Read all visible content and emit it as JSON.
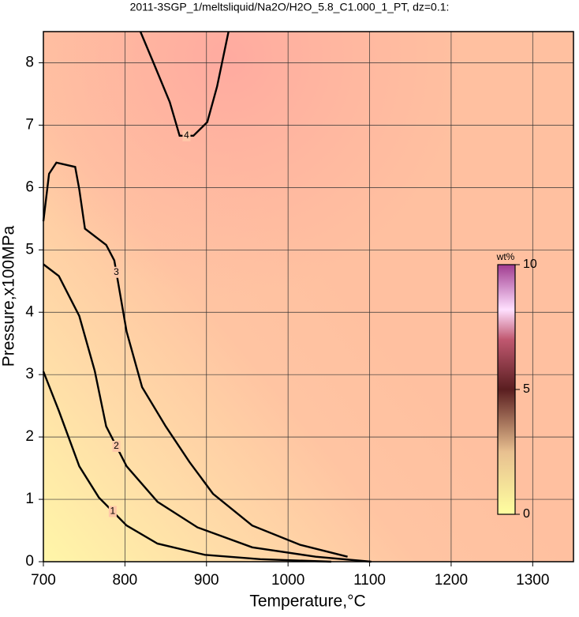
{
  "chart_data": {
    "type": "contour",
    "title": "2011-3SGP_1/meltsliquid/Na2O/H2O_5.8_C1.000_1_PT, dz=0.1:",
    "x_label": "Temperature,°C",
    "y_label": "Pressure,x100MPa",
    "xlim": [
      700,
      1350
    ],
    "ylim": [
      0,
      8.5
    ],
    "xticks": [
      700,
      800,
      900,
      1000,
      1100,
      1200,
      1300
    ],
    "yticks": [
      0,
      1,
      2,
      3,
      4,
      5,
      6,
      7,
      8
    ],
    "grid": true,
    "contours": [
      {
        "level": 1,
        "x": [
          700,
          719,
          744,
          768,
          802,
          840,
          898,
          966,
          1053
        ],
        "y": [
          3.05,
          2.42,
          1.53,
          1.03,
          0.58,
          0.29,
          0.11,
          0.04,
          0
        ]
      },
      {
        "level": 2,
        "x": [
          700,
          719,
          744,
          763,
          777,
          802,
          840,
          889,
          956,
          1034,
          1102
        ],
        "y": [
          4.77,
          4.58,
          3.94,
          3.06,
          2.17,
          1.53,
          0.96,
          0.55,
          0.23,
          0.08,
          0
        ]
      },
      {
        "level": 3,
        "x": [
          700,
          707,
          716,
          739,
          744,
          751,
          777,
          787,
          792,
          802,
          821,
          850,
          879,
          908,
          956,
          1015,
          1073
        ],
        "y": [
          5.46,
          6.22,
          6.4,
          6.33,
          5.97,
          5.34,
          5.08,
          4.83,
          4.45,
          3.69,
          2.8,
          2.17,
          1.6,
          1.09,
          0.58,
          0.27,
          0.08
        ]
      },
      {
        "level": 4,
        "x": [
          819,
          835,
          855,
          867,
          884,
          901,
          913,
          927
        ],
        "y": [
          8.5,
          8.0,
          7.37,
          6.83,
          6.83,
          7.05,
          7.62,
          8.5
        ]
      }
    ],
    "colorbar": {
      "label": "wt%",
      "lim": [
        0,
        10
      ],
      "ticks": [
        0,
        5,
        10
      ]
    }
  }
}
